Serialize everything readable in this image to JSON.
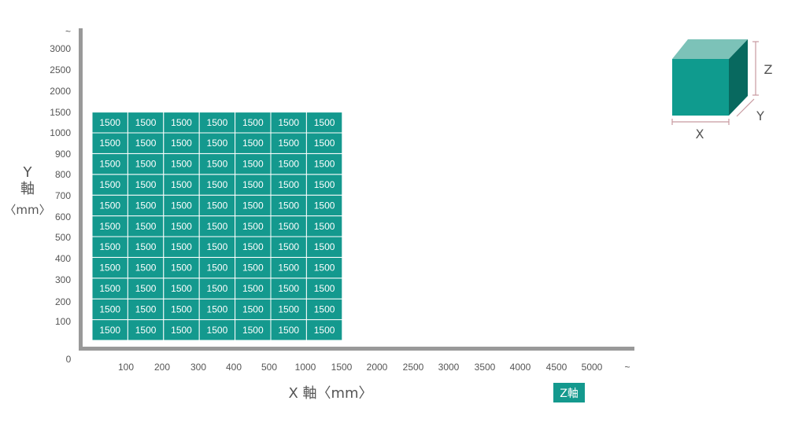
{
  "chart_data": {
    "type": "heatmap",
    "xlabel": "X 軸〈mm〉",
    "ylabel": {
      "letter": "Y",
      "kanji": "軸",
      "unit": "〈mm〉"
    },
    "x_ticks": [
      "100",
      "200",
      "300",
      "400",
      "500",
      "1000",
      "1500",
      "2000",
      "2500",
      "3000",
      "3500",
      "4000",
      "4500",
      "5000",
      "~"
    ],
    "y_ticks": [
      "100",
      "200",
      "300",
      "400",
      "500",
      "600",
      "700",
      "800",
      "900",
      "1000",
      "1500",
      "2000",
      "2500",
      "3000",
      "~"
    ],
    "origin_label": "0",
    "x_categories": [
      "100",
      "200",
      "300",
      "400",
      "500",
      "1000",
      "1500"
    ],
    "y_categories": [
      "100",
      "200",
      "300",
      "400",
      "500",
      "600",
      "700",
      "800",
      "900",
      "1000",
      "1500"
    ],
    "z_values": [
      [
        1500,
        1500,
        1500,
        1500,
        1500,
        1500,
        1500
      ],
      [
        1500,
        1500,
        1500,
        1500,
        1500,
        1500,
        1500
      ],
      [
        1500,
        1500,
        1500,
        1500,
        1500,
        1500,
        1500
      ],
      [
        1500,
        1500,
        1500,
        1500,
        1500,
        1500,
        1500
      ],
      [
        1500,
        1500,
        1500,
        1500,
        1500,
        1500,
        1500
      ],
      [
        1500,
        1500,
        1500,
        1500,
        1500,
        1500,
        1500
      ],
      [
        1500,
        1500,
        1500,
        1500,
        1500,
        1500,
        1500
      ],
      [
        1500,
        1500,
        1500,
        1500,
        1500,
        1500,
        1500
      ],
      [
        1500,
        1500,
        1500,
        1500,
        1500,
        1500,
        1500
      ],
      [
        1500,
        1500,
        1500,
        1500,
        1500,
        1500,
        1500
      ],
      [
        1500,
        1500,
        1500,
        1500,
        1500,
        1500,
        1500
      ]
    ],
    "z_legend_label": "Z軸",
    "grid": false
  },
  "cube_legend": {
    "x_label": "X",
    "y_label": "Y",
    "z_label": "Z"
  },
  "colors": {
    "cell": "#14998e",
    "cell_border": "#ffffff",
    "axis": "#999999",
    "text": "#555555",
    "cube_front": "#0f9b8e",
    "cube_top": "#7cc2b8",
    "cube_side": "#08695f",
    "dimension_line": "#c89aa0"
  }
}
